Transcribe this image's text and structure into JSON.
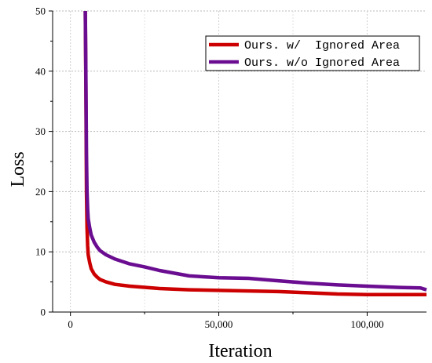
{
  "chart_data": {
    "type": "line",
    "title": "",
    "xlabel": "Iteration",
    "ylabel": "Loss",
    "xlim": [
      -6000,
      120000
    ],
    "ylim": [
      0,
      50
    ],
    "x_ticks": [
      0,
      50000,
      100000
    ],
    "x_tick_labels": [
      "0",
      "50,000",
      "100,000"
    ],
    "y_ticks": [
      0,
      10,
      20,
      30,
      40,
      50
    ],
    "y_tick_labels": [
      "0",
      "10",
      "20",
      "30",
      "40",
      "50"
    ],
    "grid": true,
    "legend_position": "top-right",
    "series": [
      {
        "name": "Ours. w/  Ignored Area",
        "color": "#cc0000",
        "x": [
          5000,
          5200,
          5400,
          5600,
          5800,
          6000,
          6500,
          7000,
          8000,
          9000,
          10000,
          12000,
          15000,
          20000,
          25000,
          30000,
          40000,
          50000,
          60000,
          70000,
          80000,
          90000,
          100000,
          110000,
          120000
        ],
        "y": [
          50,
          38,
          20,
          14,
          11,
          9.5,
          8.2,
          7.2,
          6.3,
          5.8,
          5.4,
          5.0,
          4.6,
          4.3,
          4.1,
          3.9,
          3.7,
          3.6,
          3.5,
          3.4,
          3.2,
          3.0,
          2.9,
          2.9,
          2.9
        ]
      },
      {
        "name": "Ours. w/o Ignored Area",
        "color": "#6a0d91",
        "x": [
          5000,
          5200,
          5400,
          5600,
          5800,
          6000,
          6500,
          7000,
          8000,
          9000,
          10000,
          12000,
          15000,
          20000,
          25000,
          30000,
          40000,
          50000,
          60000,
          70000,
          80000,
          90000,
          100000,
          110000,
          118000,
          120000
        ],
        "y": [
          50,
          40,
          26,
          20,
          17,
          15.5,
          14.0,
          12.8,
          11.6,
          10.8,
          10.2,
          9.5,
          8.8,
          8.0,
          7.5,
          6.9,
          6.0,
          5.7,
          5.6,
          5.2,
          4.8,
          4.5,
          4.3,
          4.1,
          4.0,
          3.7
        ]
      }
    ]
  }
}
